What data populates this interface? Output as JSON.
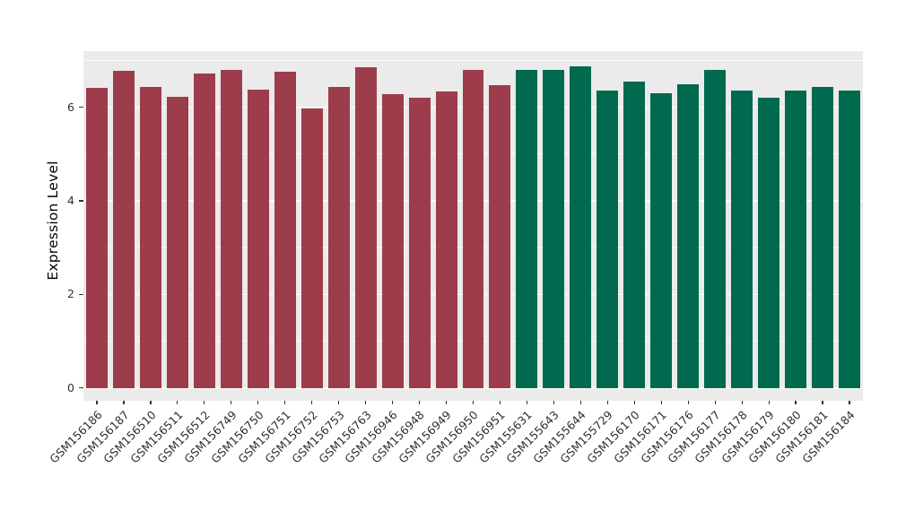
{
  "chart_data": {
    "type": "bar",
    "title": "",
    "xlabel": "",
    "ylabel": "Expression Level",
    "yticks": [
      0,
      2,
      4,
      6
    ],
    "yticks_minor": [
      1,
      3,
      5,
      7
    ],
    "y_domain": [
      -0.27,
      7.2
    ],
    "panel_bg": "#EBEBEB",
    "grid_color": "#FFFFFF",
    "group_colors": {
      "red": "#9D3C4B",
      "green": "#00694E"
    },
    "categories": [
      "GSM156186",
      "GSM156187",
      "GSM156510",
      "GSM156511",
      "GSM156512",
      "GSM156749",
      "GSM156750",
      "GSM156751",
      "GSM156752",
      "GSM156753",
      "GSM156763",
      "GSM156946",
      "GSM156948",
      "GSM156949",
      "GSM156950",
      "GSM156951",
      "GSM155631",
      "GSM155643",
      "GSM155644",
      "GSM155729",
      "GSM156170",
      "GSM156171",
      "GSM156176",
      "GSM156177",
      "GSM156178",
      "GSM156179",
      "GSM156180",
      "GSM156181",
      "GSM156184"
    ],
    "values": [
      6.42,
      6.78,
      6.43,
      6.22,
      6.73,
      6.8,
      6.37,
      6.75,
      5.97,
      6.43,
      6.86,
      6.29,
      6.2,
      6.33,
      6.8,
      6.47,
      6.79,
      6.8,
      6.87,
      6.36,
      6.54,
      6.3,
      6.49,
      6.79,
      6.36,
      6.21,
      6.36,
      6.43,
      6.36
    ],
    "groups": [
      "red",
      "red",
      "red",
      "red",
      "red",
      "red",
      "red",
      "red",
      "red",
      "red",
      "red",
      "red",
      "red",
      "red",
      "red",
      "red",
      "green",
      "green",
      "green",
      "green",
      "green",
      "green",
      "green",
      "green",
      "green",
      "green",
      "green",
      "green",
      "green"
    ],
    "legend": null
  }
}
